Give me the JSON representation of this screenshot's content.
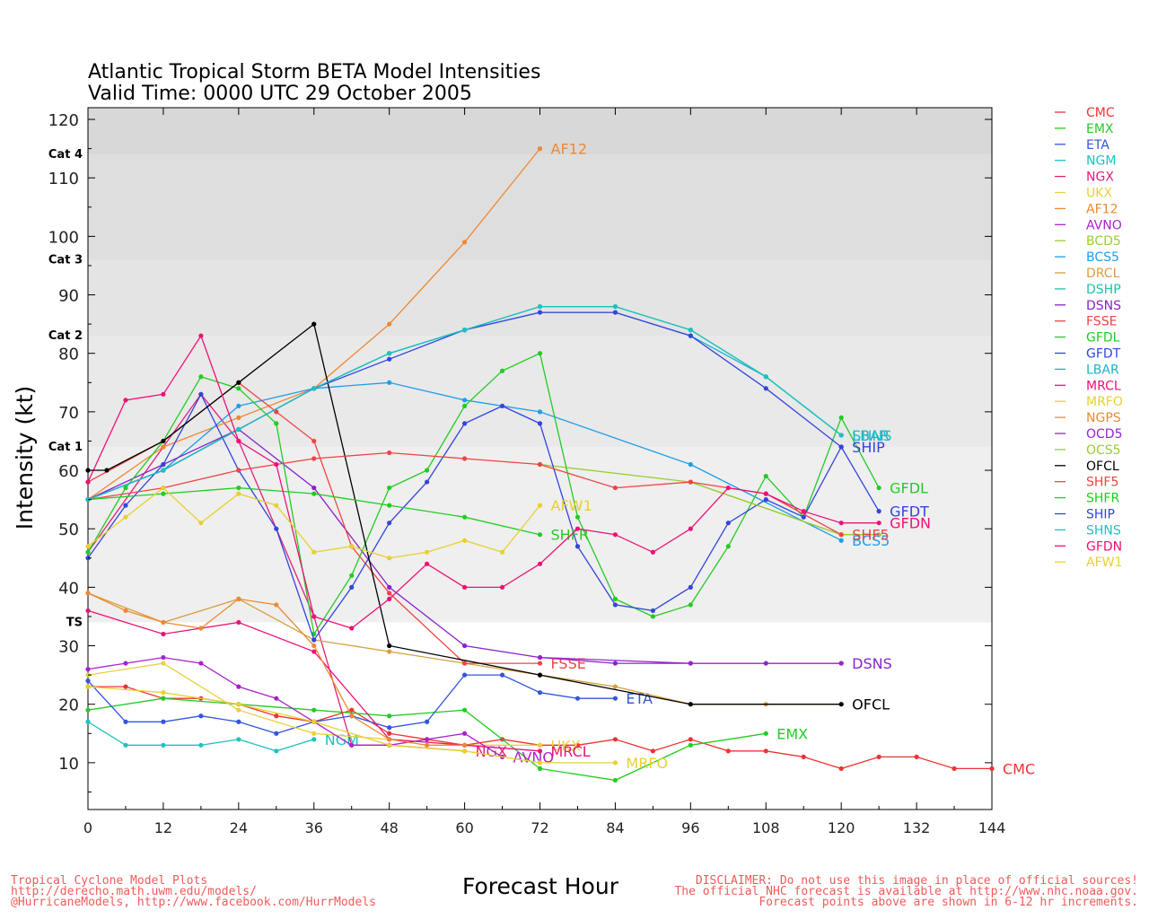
{
  "chart_data": {
    "type": "line",
    "title": "Atlantic Tropical Storm BETA Model Intensities",
    "subtitle": "Valid Time: 0000 UTC 29 October 2005",
    "xlabel": "Forecast Hour",
    "ylabel": "Intensity (kt)",
    "xlim": [
      0,
      144
    ],
    "ylim": [
      2,
      122
    ],
    "xticks": [
      0,
      12,
      24,
      36,
      48,
      60,
      72,
      84,
      96,
      108,
      120,
      132,
      144
    ],
    "yticks": [
      10,
      20,
      30,
      40,
      50,
      60,
      70,
      80,
      90,
      100,
      110,
      120
    ],
    "grid": false,
    "legend_position": "right",
    "categories": [
      {
        "label": "TS",
        "y": 34
      },
      {
        "label": "Cat 1",
        "y": 64
      },
      {
        "label": "Cat 2",
        "y": 83
      },
      {
        "label": "Cat 3",
        "y": 96
      },
      {
        "label": "Cat 4",
        "y": 114
      }
    ],
    "bands": [
      {
        "from": 34,
        "to": 64,
        "color": "#efefef"
      },
      {
        "from": 64,
        "to": 83,
        "color": "#e9e9e9"
      },
      {
        "from": 83,
        "to": 96,
        "color": "#e4e4e4"
      },
      {
        "from": 96,
        "to": 114,
        "color": "#dedede"
      },
      {
        "from": 114,
        "to": 122,
        "color": "#d8d8d8"
      }
    ],
    "series": [
      {
        "name": "CMC",
        "color": "#ee3333",
        "label": "CMC",
        "x": [
          0,
          6,
          12,
          18,
          24,
          30,
          36,
          42,
          48,
          54,
          60,
          66,
          72,
          78,
          84,
          90,
          96,
          102,
          108,
          114,
          120,
          126,
          132,
          138,
          144
        ],
        "y": [
          23,
          23,
          21,
          21,
          20,
          18,
          17,
          19,
          15,
          14,
          13,
          14,
          13,
          13,
          14,
          12,
          14,
          12,
          12,
          11,
          9,
          11,
          11,
          9,
          9
        ]
      },
      {
        "name": "EMX",
        "color": "#22cc22",
        "label": "EMX",
        "x": [
          0,
          12,
          24,
          36,
          48,
          60,
          72,
          84,
          96,
          108
        ],
        "y": [
          19,
          21,
          20,
          19,
          18,
          19,
          9,
          7,
          13,
          15
        ]
      },
      {
        "name": "ETA",
        "color": "#3355dd",
        "label": "ETA",
        "x": [
          0,
          6,
          12,
          18,
          24,
          30,
          36,
          42,
          48,
          54,
          60,
          66,
          72,
          78,
          84
        ],
        "y": [
          24,
          17,
          17,
          18,
          17,
          15,
          17,
          18,
          16,
          17,
          25,
          25,
          22,
          21,
          21
        ]
      },
      {
        "name": "NGM",
        "color": "#20c0c0",
        "label": "NGM",
        "x": [
          0,
          6,
          12,
          18,
          24,
          30,
          36
        ],
        "y": [
          17,
          13,
          13,
          13,
          14,
          12,
          14
        ]
      },
      {
        "name": "NGX",
        "color": "#e0207a",
        "label": "NGX",
        "x": [
          0,
          12,
          18,
          24,
          36,
          42,
          48,
          60
        ],
        "y": [
          46,
          64,
          73,
          65,
          35,
          13,
          13,
          12
        ]
      },
      {
        "name": "UKX",
        "color": "#e8d040",
        "label": "UKX",
        "x": [
          0,
          12,
          24,
          36,
          48,
          60,
          72
        ],
        "y": [
          25,
          27,
          19,
          15,
          14,
          13,
          13
        ]
      },
      {
        "name": "AF12",
        "color": "#ee8833",
        "label": "AF12",
        "x": [
          0,
          12,
          24,
          36,
          48,
          60,
          72
        ],
        "y": [
          55,
          64,
          69,
          74,
          85,
          99,
          115
        ]
      },
      {
        "name": "AVNO",
        "color": "#aa22cc",
        "label": "AVNO",
        "x": [
          0,
          6,
          12,
          18,
          24,
          30,
          36,
          42,
          48,
          54,
          60,
          66
        ],
        "y": [
          26,
          27,
          28,
          27,
          23,
          21,
          17,
          13,
          13,
          14,
          15,
          11
        ]
      },
      {
        "name": "BCD5",
        "color": "#99cc33",
        "label": "",
        "x": [
          72,
          96,
          120,
          126
        ],
        "y": [
          61,
          58,
          49,
          49
        ]
      },
      {
        "name": "BCS5",
        "color": "#1e9ee8",
        "label": "BCS5",
        "x": [
          0,
          12,
          24,
          36,
          48,
          60,
          72,
          96,
          120
        ],
        "y": [
          55,
          60,
          71,
          74,
          75,
          72,
          70,
          61,
          48
        ]
      },
      {
        "name": "DRCL",
        "color": "#d4a040",
        "label": "",
        "x": [
          0,
          12,
          24,
          36,
          48,
          60,
          72,
          84,
          96,
          108,
          120
        ],
        "y": [
          39,
          34,
          38,
          31,
          29,
          27,
          25,
          23,
          20,
          20,
          20
        ]
      },
      {
        "name": "DSHP",
        "color": "#20c0a8",
        "label": "",
        "x": [
          0,
          12,
          24,
          36,
          48,
          60,
          72,
          84,
          96,
          108,
          120
        ],
        "y": [
          55,
          60,
          67,
          74,
          80,
          84,
          88,
          88,
          84,
          76,
          66
        ]
      },
      {
        "name": "DSNS",
        "color": "#8822cc",
        "label": "DSNS",
        "x": [
          0,
          12,
          24,
          36,
          48,
          60,
          72,
          84,
          96,
          108,
          120
        ],
        "y": [
          55,
          61,
          67,
          57,
          40,
          30,
          28,
          27,
          27,
          27,
          27
        ]
      },
      {
        "name": "FSSE",
        "color": "#ee4444",
        "label": "FSSE",
        "x": [
          0,
          12,
          24,
          30,
          36,
          42,
          48,
          60,
          72
        ],
        "y": [
          58,
          65,
          75,
          70,
          65,
          47,
          39,
          27,
          27
        ]
      },
      {
        "name": "GFDL",
        "color": "#22cc22",
        "label": "GFDL",
        "x": [
          0,
          6,
          12,
          18,
          24,
          30,
          36,
          42,
          48,
          54,
          60,
          66,
          72,
          78,
          84,
          90,
          96,
          102,
          108,
          114,
          120,
          126
        ],
        "y": [
          46,
          57,
          65,
          76,
          74,
          68,
          32,
          42,
          57,
          60,
          71,
          77,
          80,
          52,
          38,
          35,
          37,
          47,
          59,
          52,
          69,
          57
        ]
      },
      {
        "name": "GFDT",
        "color": "#3344dd",
        "label": "GFDT",
        "x": [
          0,
          6,
          12,
          18,
          24,
          30,
          36,
          42,
          48,
          54,
          60,
          66,
          72,
          78,
          84,
          90,
          96,
          102,
          108,
          114,
          120,
          126
        ],
        "y": [
          45,
          54,
          61,
          73,
          60,
          50,
          31,
          40,
          51,
          58,
          68,
          71,
          68,
          47,
          37,
          36,
          40,
          51,
          55,
          52,
          64,
          53
        ]
      },
      {
        "name": "LBAR",
        "color": "#20b0c8",
        "label": "LBAR",
        "x": [
          0,
          12,
          24,
          36,
          48,
          60,
          72,
          84,
          96,
          108,
          120
        ],
        "y": [
          55,
          60,
          67,
          74,
          80,
          84,
          87,
          87,
          83,
          76,
          66
        ]
      },
      {
        "name": "MRCL",
        "color": "#ee1177",
        "label": "MRCL",
        "x": [
          0,
          12,
          24,
          36,
          48,
          60,
          72
        ],
        "y": [
          36,
          32,
          34,
          29,
          14,
          13,
          12
        ]
      },
      {
        "name": "MRFO",
        "color": "#e8d030",
        "label": "MRFO",
        "x": [
          0,
          12,
          24,
          36,
          48,
          60,
          72,
          84
        ],
        "y": [
          23,
          22,
          20,
          17,
          13,
          12,
          10,
          10
        ]
      },
      {
        "name": "NGPS",
        "color": "#ee8833",
        "label": "",
        "x": [
          0,
          6,
          12,
          18,
          24,
          30,
          36,
          42,
          48,
          54,
          60
        ],
        "y": [
          39,
          36,
          34,
          33,
          38,
          37,
          30,
          18,
          14,
          13,
          13
        ]
      },
      {
        "name": "OCD5",
        "color": "#9922cc",
        "label": "",
        "x": [
          72,
          96,
          120
        ],
        "y": [
          28,
          27,
          27
        ]
      },
      {
        "name": "OCS5",
        "color": "#99cc33",
        "label": "",
        "x": [
          96,
          120
        ],
        "y": [
          58,
          49
        ]
      },
      {
        "name": "OFCL",
        "color": "#000000",
        "label": "OFCL",
        "x": [
          0,
          3,
          12,
          24,
          36,
          48,
          72,
          96,
          120
        ],
        "y": [
          60,
          60,
          65,
          75,
          85,
          30,
          25,
          20,
          20
        ]
      },
      {
        "name": "SHF5",
        "color": "#ee4444",
        "label": "SHF5",
        "x": [
          0,
          12,
          24,
          36,
          48,
          60,
          72,
          84,
          96,
          108,
          120
        ],
        "y": [
          55,
          57,
          60,
          62,
          63,
          62,
          61,
          57,
          58,
          56,
          49
        ]
      },
      {
        "name": "SHFR",
        "color": "#22cc22",
        "label": "SHFR",
        "x": [
          0,
          12,
          24,
          36,
          48,
          60,
          72
        ],
        "y": [
          55,
          56,
          57,
          56,
          54,
          52,
          49
        ]
      },
      {
        "name": "SHIP",
        "color": "#3344dd",
        "label": "SHIP",
        "x": [
          0,
          12,
          24,
          36,
          48,
          60,
          72,
          84,
          96,
          108,
          120
        ],
        "y": [
          55,
          60,
          67,
          74,
          79,
          84,
          87,
          87,
          83,
          74,
          64
        ]
      },
      {
        "name": "SHNS",
        "color": "#20c0c0",
        "label": "SHNS",
        "x": [
          0,
          12,
          24,
          36,
          48,
          60,
          72,
          84,
          96,
          108,
          120
        ],
        "y": [
          55,
          60,
          67,
          74,
          80,
          84,
          88,
          88,
          84,
          76,
          66
        ]
      },
      {
        "name": "GFDN",
        "color": "#ee1177",
        "label": "GFDN",
        "x": [
          0,
          6,
          12,
          18,
          24,
          30,
          36,
          42,
          48,
          54,
          60,
          66,
          72,
          78,
          84,
          90,
          96,
          102,
          108,
          114,
          120,
          126
        ],
        "y": [
          58,
          72,
          73,
          83,
          65,
          61,
          35,
          33,
          38,
          44,
          40,
          40,
          44,
          50,
          49,
          46,
          50,
          57,
          56,
          53,
          51,
          51
        ]
      },
      {
        "name": "AFW1",
        "color": "#e8d030",
        "label": "AFW1",
        "x": [
          0,
          6,
          12,
          18,
          24,
          30,
          36,
          42,
          48,
          54,
          60,
          66,
          72
        ],
        "y": [
          47,
          52,
          57,
          51,
          56,
          54,
          46,
          47,
          45,
          46,
          48,
          46,
          54
        ]
      }
    ]
  },
  "footer": {
    "left": [
      "Tropical Cyclone Model Plots",
      "http://derecho.math.uwm.edu/models/",
      "@HurricaneModels, http://www.facebook.com/HurrModels"
    ],
    "right": [
      "DISCLAIMER: Do not use this image in place of official sources!",
      "The official NHC forecast is available at http://www.nhc.noaa.gov.",
      "Forecast points above are shown in 6-12 hr increments."
    ]
  }
}
